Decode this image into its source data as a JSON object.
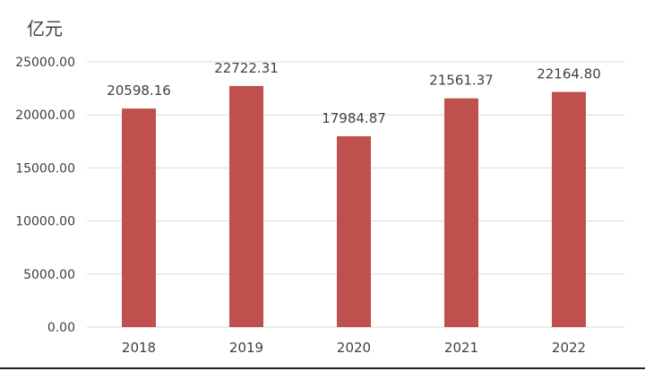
{
  "chart_data": {
    "type": "bar",
    "unit_label": "亿元",
    "categories": [
      "2018",
      "2019",
      "2020",
      "2021",
      "2022"
    ],
    "values": [
      20598.16,
      22722.31,
      17984.87,
      21561.37,
      22164.8
    ],
    "data_labels": [
      "20598.16",
      "22722.31",
      "17984.87",
      "21561.37",
      "22164.80"
    ],
    "y_ticks": [
      "0.00",
      "5000.00",
      "10000.00",
      "15000.00",
      "20000.00",
      "25000.00"
    ],
    "ylim": [
      0,
      25000
    ],
    "grid": true,
    "legend": "none",
    "bar_color": "#c0504d",
    "grid_color": "#d9d9d9",
    "text_color": "#404040"
  }
}
